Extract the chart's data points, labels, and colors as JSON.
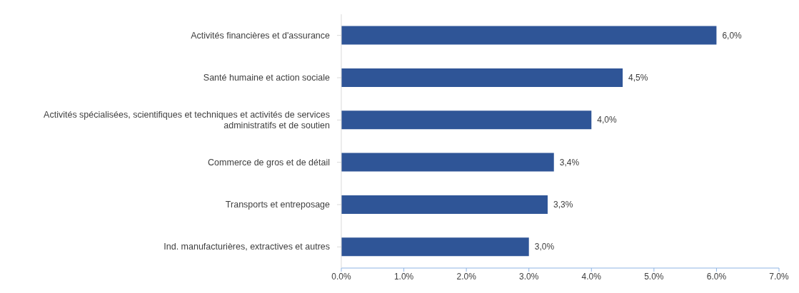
{
  "chart_data": {
    "type": "bar",
    "orientation": "horizontal",
    "categories": [
      "Activités financières et d'assurance",
      "Santé humaine et action sociale",
      "Activités spécialisées, scientifiques et techniques et activités de services administratifs et de soutien",
      "Commerce de gros et de détail",
      "Transports et entreposage",
      "Ind. manufacturières, extractives et autres"
    ],
    "values": [
      6.0,
      4.5,
      4.0,
      3.4,
      3.3,
      3.0
    ],
    "value_labels": [
      "6,0%",
      "4,5%",
      "4,0%",
      "3,4%",
      "3,3%",
      "3,0%"
    ],
    "color": "#2f5597",
    "xlim": [
      0,
      7
    ],
    "xticks": [
      {
        "value": 0,
        "label": "0.0%"
      },
      {
        "value": 1,
        "label": "1.0%"
      },
      {
        "value": 2,
        "label": "2.0%"
      },
      {
        "value": 3,
        "label": "3.0%"
      },
      {
        "value": 4,
        "label": "4.0%"
      },
      {
        "value": 5,
        "label": "5.0%"
      },
      {
        "value": 6,
        "label": "6.0%"
      },
      {
        "value": 7,
        "label": "7.0%"
      }
    ],
    "grid": false,
    "legend": false
  }
}
